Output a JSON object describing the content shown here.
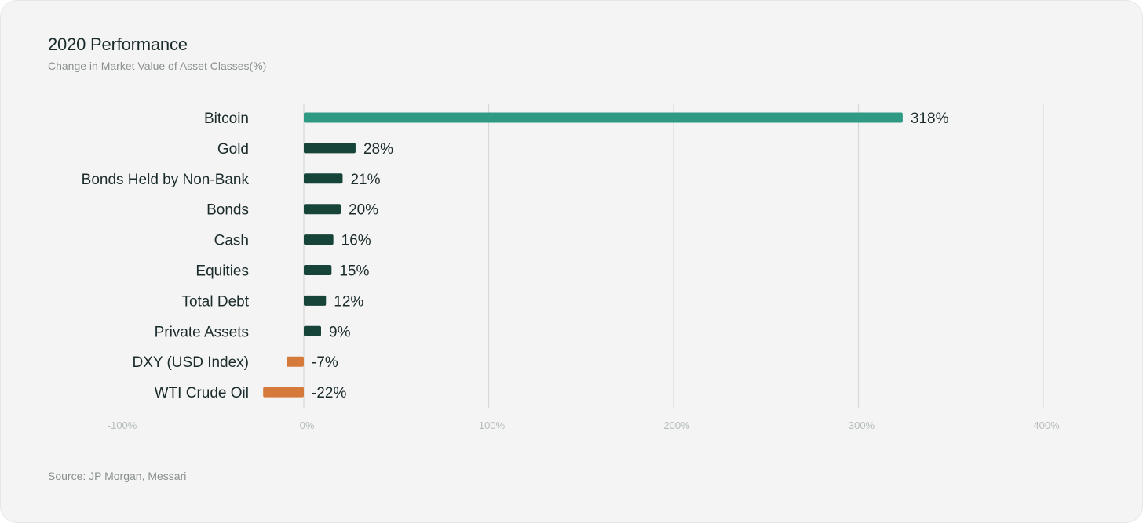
{
  "header": {
    "title": "2020 Performance",
    "subtitle": "Change in Market Value of Asset Classes(%)"
  },
  "footer": {
    "source": "Source: JP Morgan, Messari"
  },
  "colors": {
    "positive_highlight": "#2e9a83",
    "positive": "#174438",
    "negative": "#d67a3c",
    "gridline": "#d6d8d8",
    "background": "#f4f4f4"
  },
  "chart_data": {
    "type": "bar",
    "orientation": "horizontal",
    "title": "2020 Performance",
    "subtitle": "Change in Market Value of Asset Classes(%)",
    "xlabel": "",
    "ylabel": "",
    "xlim": [
      -100,
      400
    ],
    "x_ticks": [
      -100,
      0,
      100,
      200,
      300,
      400
    ],
    "x_tick_labels": [
      "-100%",
      "0%",
      "100%",
      "200%",
      "300%",
      "400%"
    ],
    "grid": "vertical",
    "categories": [
      "Bitcoin",
      "Gold",
      "Bonds Held by Non-Bank",
      "Bonds",
      "Cash",
      "Equities",
      "Total Debt",
      "Private Assets",
      "DXY (USD Index)",
      "WTI Crude Oil"
    ],
    "values": [
      318,
      28,
      21,
      20,
      16,
      15,
      12,
      9,
      -7,
      -22
    ],
    "value_labels": [
      "318%",
      "28%",
      "21%",
      "20%",
      "16%",
      "15%",
      "12%",
      "9%",
      "-7%",
      "-22%"
    ],
    "bar_colors": [
      "#2e9a83",
      "#174438",
      "#174438",
      "#174438",
      "#174438",
      "#174438",
      "#174438",
      "#174438",
      "#d67a3c",
      "#d67a3c"
    ]
  }
}
